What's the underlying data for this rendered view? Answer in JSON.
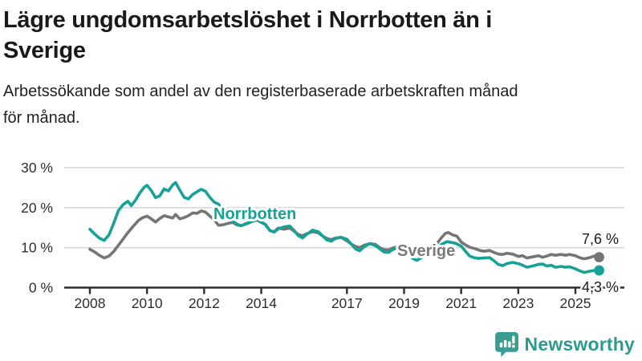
{
  "header": {
    "title_lines": [
      "Lägre ungdomsarbetslöshet i Norrbotten än i",
      "Sverige"
    ],
    "subtitle_lines": [
      "Arbetssökande som andel av den registerbaserade arbetskraften månad",
      "för månad."
    ]
  },
  "chart_data": {
    "type": "line",
    "title": "Lägre ungdomsarbetslöshet i Norrbotten än i Sverige",
    "subtitle": "Arbetssökande som andel av den registerbaserade arbetskraften månad för månad.",
    "unit": "%",
    "xlabel": "",
    "ylabel": "",
    "ylim": [
      0,
      30
    ],
    "grid": true,
    "legend_position": "inline-labels",
    "yticks": [
      {
        "value": 0,
        "label": "0 %"
      },
      {
        "value": 10,
        "label": "10 %"
      },
      {
        "value": 20,
        "label": "20 %"
      },
      {
        "value": 30,
        "label": "30 %"
      }
    ],
    "xticks": [
      {
        "value": 2008,
        "label": "2008"
      },
      {
        "value": 2010,
        "label": "2010"
      },
      {
        "value": 2012,
        "label": "2012"
      },
      {
        "value": 2014,
        "label": "2014"
      },
      {
        "value": 2017,
        "label": "2017"
      },
      {
        "value": 2019,
        "label": "2019"
      },
      {
        "value": 2021,
        "label": "2021"
      },
      {
        "value": 2023,
        "label": "2023"
      },
      {
        "value": 2025,
        "label": "2025"
      }
    ],
    "series": [
      {
        "name": "Sverige",
        "color": "#757575",
        "end_value": 7.6,
        "end_value_label": "7,6 %",
        "points": [
          [
            2008.0,
            9.6
          ],
          [
            2008.17,
            8.9
          ],
          [
            2008.33,
            8.1
          ],
          [
            2008.5,
            7.4
          ],
          [
            2008.67,
            7.9
          ],
          [
            2008.83,
            9.0
          ],
          [
            2009.0,
            10.6
          ],
          [
            2009.15,
            12.0
          ],
          [
            2009.3,
            13.5
          ],
          [
            2009.5,
            15.2
          ],
          [
            2009.7,
            16.8
          ],
          [
            2009.85,
            17.5
          ],
          [
            2010.0,
            17.9
          ],
          [
            2010.15,
            17.2
          ],
          [
            2010.3,
            16.4
          ],
          [
            2010.45,
            17.3
          ],
          [
            2010.6,
            18.0
          ],
          [
            2010.75,
            17.7
          ],
          [
            2010.9,
            17.4
          ],
          [
            2011.0,
            18.3
          ],
          [
            2011.15,
            17.2
          ],
          [
            2011.3,
            17.5
          ],
          [
            2011.45,
            18.0
          ],
          [
            2011.6,
            18.7
          ],
          [
            2011.75,
            18.6
          ],
          [
            2011.9,
            19.2
          ],
          [
            2012.05,
            18.9
          ],
          [
            2012.2,
            17.9
          ],
          [
            2012.35,
            17.0
          ],
          [
            2012.5,
            15.6
          ],
          [
            2012.65,
            15.7
          ],
          [
            2012.8,
            16.0
          ],
          [
            2013.0,
            16.3
          ],
          [
            2013.15,
            15.7
          ],
          [
            2013.3,
            15.5
          ],
          [
            2013.5,
            16.0
          ],
          [
            2013.7,
            16.6
          ],
          [
            2013.85,
            16.9
          ],
          [
            2014.0,
            16.3
          ],
          [
            2014.15,
            15.8
          ],
          [
            2014.3,
            14.3
          ],
          [
            2014.45,
            14.0
          ],
          [
            2014.6,
            14.9
          ],
          [
            2014.8,
            14.6
          ],
          [
            2015.0,
            14.9
          ],
          [
            2015.15,
            14.1
          ],
          [
            2015.3,
            13.3
          ],
          [
            2015.45,
            13.0
          ],
          [
            2015.6,
            13.5
          ],
          [
            2015.8,
            14.0
          ],
          [
            2016.0,
            13.7
          ],
          [
            2016.15,
            12.9
          ],
          [
            2016.3,
            12.3
          ],
          [
            2016.45,
            12.0
          ],
          [
            2016.6,
            12.4
          ],
          [
            2016.8,
            12.6
          ],
          [
            2017.0,
            11.7
          ],
          [
            2017.15,
            10.9
          ],
          [
            2017.3,
            10.3
          ],
          [
            2017.45,
            10.0
          ],
          [
            2017.6,
            10.6
          ],
          [
            2017.8,
            11.0
          ],
          [
            2018.0,
            10.8
          ],
          [
            2018.15,
            10.0
          ],
          [
            2018.3,
            9.5
          ],
          [
            2018.45,
            9.4
          ],
          [
            2018.6,
            9.9
          ],
          [
            2018.8,
            10.3
          ],
          [
            2019.0,
            10.0
          ],
          [
            2019.15,
            9.5
          ],
          [
            2019.3,
            9.2
          ],
          [
            2019.5,
            8.9
          ],
          [
            2019.65,
            9.2
          ],
          [
            2019.8,
            9.6
          ],
          [
            2020.0,
            10.2
          ],
          [
            2020.15,
            11.0
          ],
          [
            2020.3,
            12.4
          ],
          [
            2020.45,
            13.6
          ],
          [
            2020.55,
            13.8
          ],
          [
            2020.7,
            13.2
          ],
          [
            2020.85,
            12.9
          ],
          [
            2021.0,
            11.4
          ],
          [
            2021.15,
            10.7
          ],
          [
            2021.3,
            10.1
          ],
          [
            2021.5,
            9.7
          ],
          [
            2021.65,
            9.3
          ],
          [
            2021.8,
            9.1
          ],
          [
            2022.0,
            9.3
          ],
          [
            2022.15,
            8.8
          ],
          [
            2022.3,
            8.4
          ],
          [
            2022.45,
            8.3
          ],
          [
            2022.6,
            8.6
          ],
          [
            2022.8,
            8.4
          ],
          [
            2023.0,
            7.8
          ],
          [
            2023.15,
            8.0
          ],
          [
            2023.3,
            7.4
          ],
          [
            2023.5,
            7.7
          ],
          [
            2023.7,
            8.0
          ],
          [
            2023.85,
            7.6
          ],
          [
            2024.0,
            7.9
          ],
          [
            2024.15,
            8.3
          ],
          [
            2024.3,
            8.1
          ],
          [
            2024.5,
            8.3
          ],
          [
            2024.65,
            8.1
          ],
          [
            2024.8,
            8.3
          ],
          [
            2025.0,
            8.0
          ],
          [
            2025.15,
            7.5
          ],
          [
            2025.3,
            7.2
          ],
          [
            2025.5,
            7.5
          ],
          [
            2025.65,
            7.9
          ],
          [
            2025.83,
            7.6
          ]
        ]
      },
      {
        "name": "Norrbotten",
        "color": "#17a297",
        "end_value": 4.3,
        "end_value_label": "4,3 %",
        "points": [
          [
            2008.0,
            14.6
          ],
          [
            2008.17,
            13.4
          ],
          [
            2008.33,
            12.4
          ],
          [
            2008.5,
            11.8
          ],
          [
            2008.67,
            13.2
          ],
          [
            2008.83,
            16.0
          ],
          [
            2009.0,
            19.3
          ],
          [
            2009.17,
            20.8
          ],
          [
            2009.33,
            21.6
          ],
          [
            2009.45,
            20.5
          ],
          [
            2009.6,
            21.9
          ],
          [
            2009.75,
            23.7
          ],
          [
            2009.9,
            25.1
          ],
          [
            2010.0,
            25.6
          ],
          [
            2010.15,
            24.3
          ],
          [
            2010.3,
            22.5
          ],
          [
            2010.45,
            23.0
          ],
          [
            2010.6,
            24.7
          ],
          [
            2010.75,
            24.2
          ],
          [
            2010.9,
            25.7
          ],
          [
            2011.0,
            26.3
          ],
          [
            2011.15,
            24.4
          ],
          [
            2011.3,
            22.6
          ],
          [
            2011.45,
            22.2
          ],
          [
            2011.6,
            23.3
          ],
          [
            2011.75,
            24.0
          ],
          [
            2011.9,
            24.6
          ],
          [
            2012.05,
            24.1
          ],
          [
            2012.2,
            22.6
          ],
          [
            2012.35,
            21.4
          ],
          [
            2012.5,
            20.9
          ],
          [
            2012.65,
            19.3
          ],
          [
            2012.8,
            17.9
          ],
          [
            2013.0,
            16.6
          ],
          [
            2013.15,
            15.9
          ],
          [
            2013.3,
            15.5
          ],
          [
            2013.5,
            16.1
          ],
          [
            2013.7,
            16.7
          ],
          [
            2013.85,
            17.0
          ],
          [
            2014.0,
            16.5
          ],
          [
            2014.15,
            15.7
          ],
          [
            2014.3,
            14.3
          ],
          [
            2014.45,
            13.9
          ],
          [
            2014.6,
            14.7
          ],
          [
            2014.8,
            15.2
          ],
          [
            2015.0,
            15.4
          ],
          [
            2015.15,
            14.3
          ],
          [
            2015.3,
            13.0
          ],
          [
            2015.45,
            12.4
          ],
          [
            2015.6,
            13.4
          ],
          [
            2015.8,
            14.4
          ],
          [
            2016.0,
            14.0
          ],
          [
            2016.15,
            12.9
          ],
          [
            2016.3,
            11.9
          ],
          [
            2016.45,
            11.6
          ],
          [
            2016.6,
            12.3
          ],
          [
            2016.8,
            12.6
          ],
          [
            2017.0,
            12.1
          ],
          [
            2017.15,
            10.9
          ],
          [
            2017.3,
            9.7
          ],
          [
            2017.45,
            9.2
          ],
          [
            2017.6,
            10.2
          ],
          [
            2017.8,
            11.0
          ],
          [
            2018.0,
            10.5
          ],
          [
            2018.15,
            9.7
          ],
          [
            2018.3,
            8.9
          ],
          [
            2018.45,
            8.8
          ],
          [
            2018.6,
            9.5
          ],
          [
            2018.8,
            10.1
          ],
          [
            2019.0,
            9.7
          ],
          [
            2019.15,
            8.5
          ],
          [
            2019.3,
            7.3
          ],
          [
            2019.45,
            6.8
          ],
          [
            2019.6,
            7.5
          ],
          [
            2019.8,
            8.4
          ],
          [
            2020.0,
            8.7
          ],
          [
            2020.15,
            9.7
          ],
          [
            2020.3,
            10.8
          ],
          [
            2020.5,
            11.5
          ],
          [
            2020.65,
            11.3
          ],
          [
            2020.8,
            11.1
          ],
          [
            2021.0,
            10.4
          ],
          [
            2021.15,
            9.1
          ],
          [
            2021.3,
            7.9
          ],
          [
            2021.45,
            7.5
          ],
          [
            2021.6,
            7.3
          ],
          [
            2021.8,
            7.4
          ],
          [
            2022.0,
            7.5
          ],
          [
            2022.15,
            6.7
          ],
          [
            2022.3,
            5.8
          ],
          [
            2022.45,
            5.5
          ],
          [
            2022.6,
            6.0
          ],
          [
            2022.8,
            6.3
          ],
          [
            2023.0,
            6.0
          ],
          [
            2023.15,
            5.6
          ],
          [
            2023.3,
            5.1
          ],
          [
            2023.5,
            5.4
          ],
          [
            2023.7,
            5.8
          ],
          [
            2023.85,
            5.9
          ],
          [
            2024.0,
            5.4
          ],
          [
            2024.15,
            5.6
          ],
          [
            2024.3,
            5.1
          ],
          [
            2024.5,
            5.3
          ],
          [
            2024.65,
            5.1
          ],
          [
            2024.8,
            5.2
          ],
          [
            2025.0,
            4.7
          ],
          [
            2025.15,
            4.2
          ],
          [
            2025.3,
            3.8
          ],
          [
            2025.5,
            4.1
          ],
          [
            2025.65,
            4.3
          ],
          [
            2025.83,
            4.3
          ]
        ]
      }
    ]
  },
  "branding": {
    "logo_text": "Newsworthy",
    "logo_color": "#2d9a90",
    "logo_icon": "bar-chart-speech-bubble-icon"
  }
}
